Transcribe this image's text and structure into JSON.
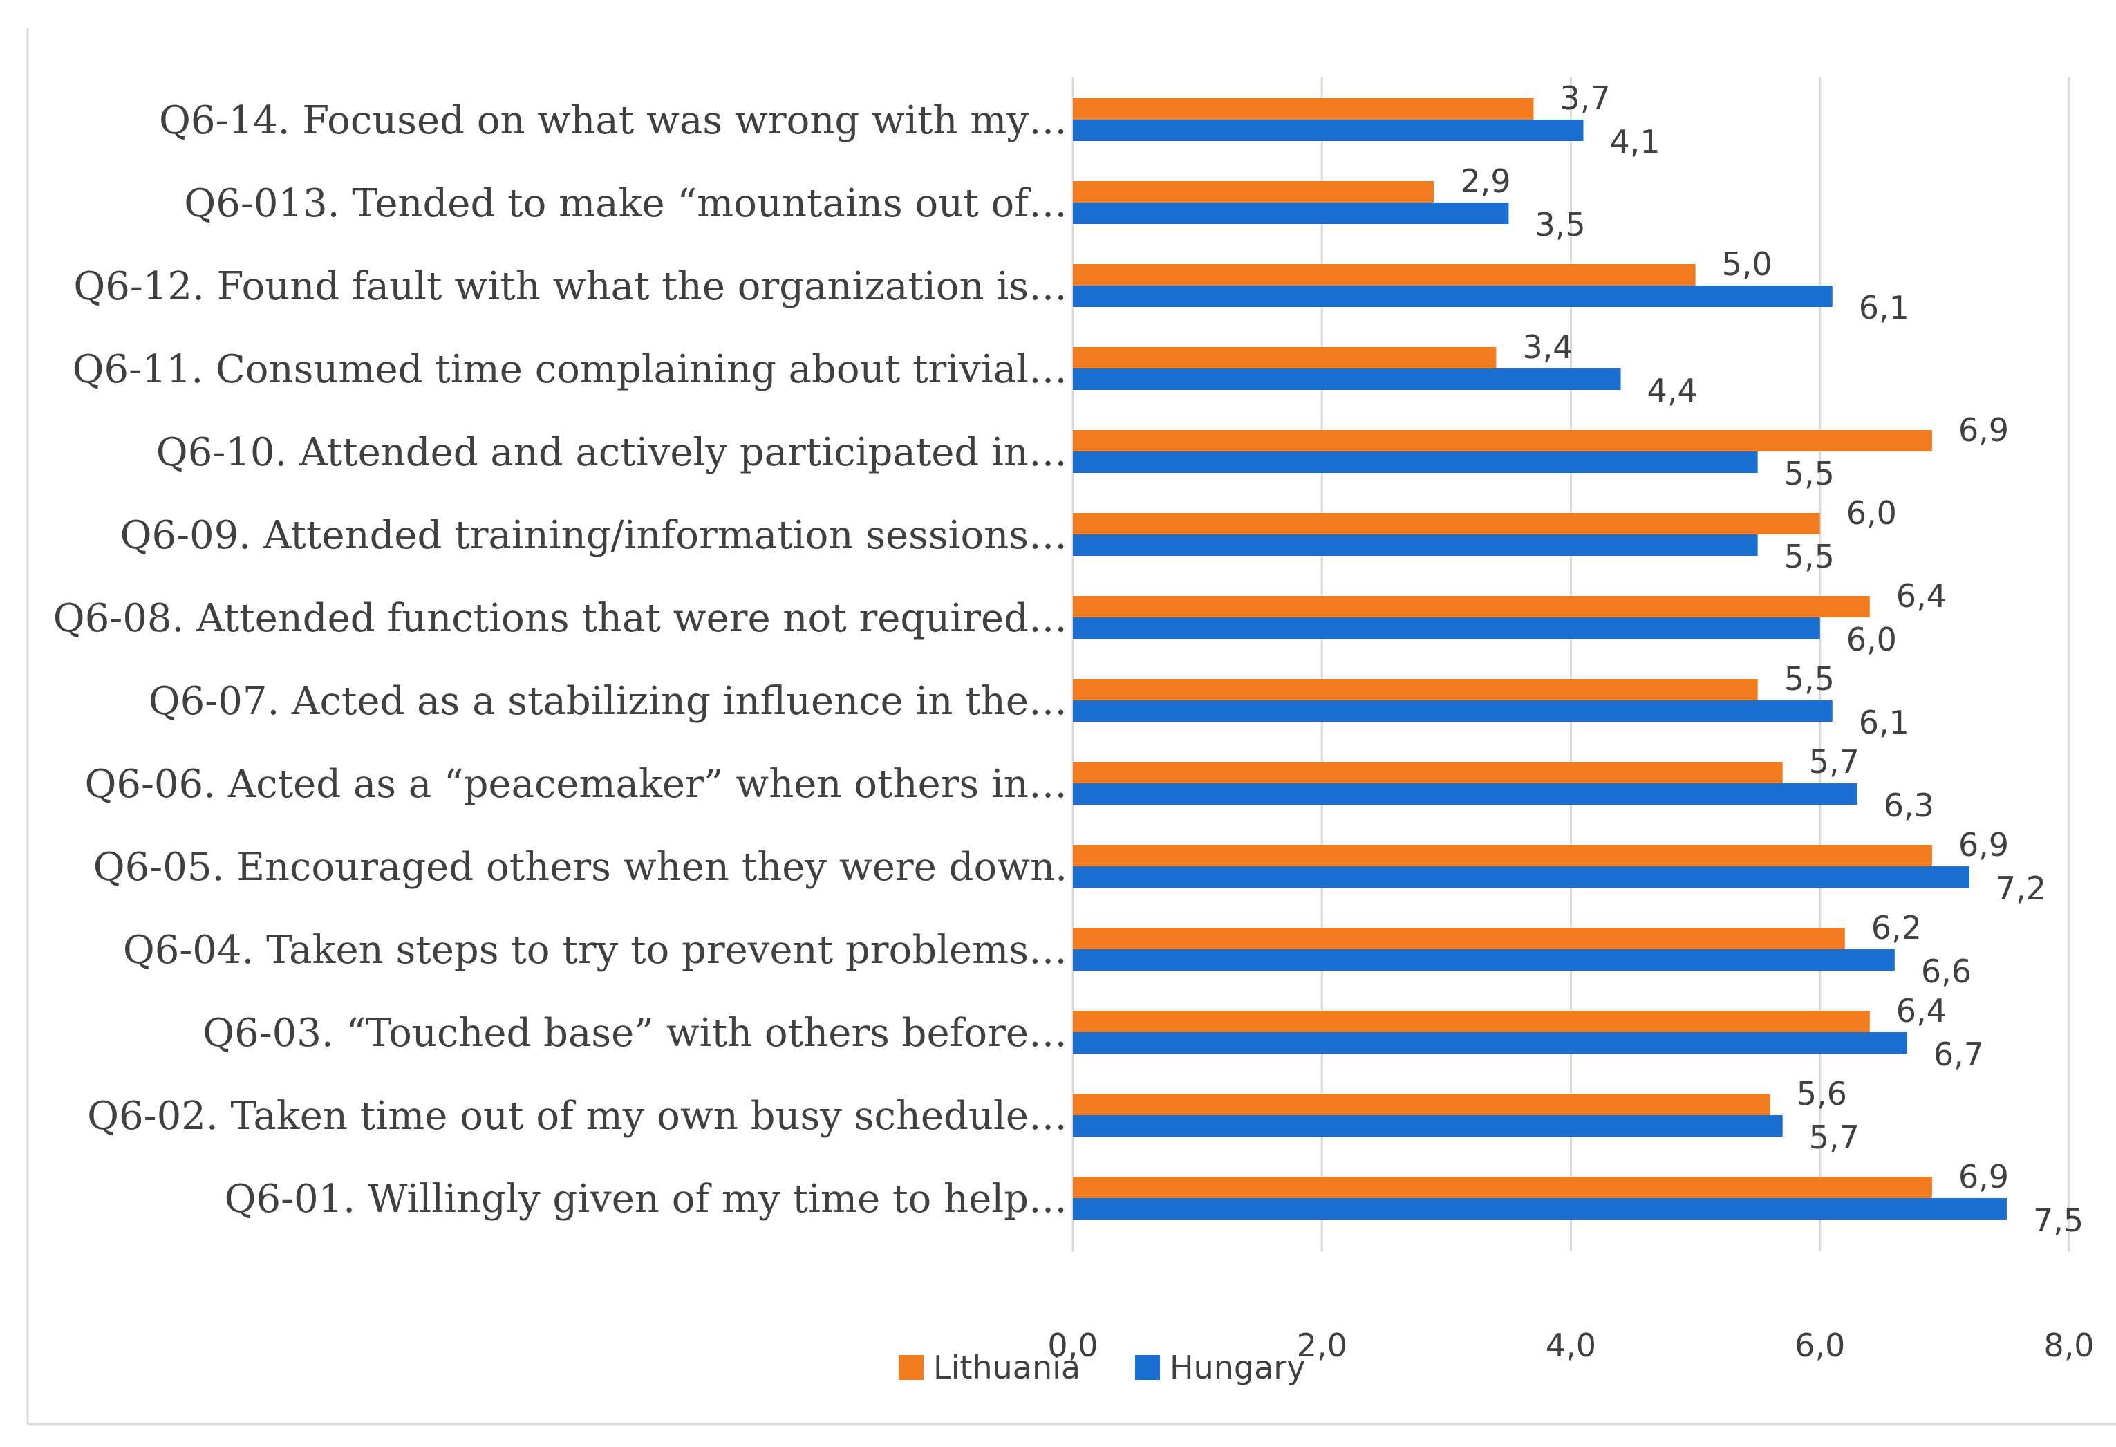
{
  "chart_data": {
    "type": "bar",
    "orientation": "horizontal",
    "title": "",
    "xlabel": "",
    "ylabel": "",
    "xlim": [
      0,
      8
    ],
    "x_ticks": [
      "0,0",
      "2,0",
      "4,0",
      "6,0",
      "8,0"
    ],
    "x_tick_values": [
      0,
      2,
      4,
      6,
      8
    ],
    "grid": true,
    "legend_position": "bottom",
    "categories": [
      "Q6-14. Focused on what was wrong with my…",
      "Q6-013. Tended to make “mountains out of…",
      "Q6-12. Found fault with what the organization is…",
      "Q6-11. Consumed time complaining about trivial…",
      "Q6-10. Attended and actively participated in…",
      "Q6-09. Attended training/information sessions…",
      "Q6-08. Attended functions that were not required…",
      "Q6-07. Acted as a stabilizing influence in the…",
      "Q6-06. Acted as a “peacemaker” when others in…",
      "Q6-05. Encouraged others when they were down.",
      "Q6-04. Taken steps to try to prevent problems…",
      "Q6-03. “Touched base” with others before…",
      "Q6-02. Taken time out of my own busy schedule…",
      "Q6-01. Willingly given of my time to help…"
    ],
    "series": [
      {
        "name": "Lithuania",
        "color": "#f47c20",
        "values": [
          3.7,
          2.9,
          5.0,
          3.4,
          6.9,
          6.0,
          6.4,
          5.5,
          5.7,
          6.9,
          6.2,
          6.4,
          5.6,
          6.9
        ],
        "labels": [
          "3,7",
          "2,9",
          "5,0",
          "3,4",
          "6,9",
          "6,0",
          "6,4",
          "5,5",
          "5,7",
          "6,9",
          "6,2",
          "6,4",
          "5,6",
          "6,9"
        ]
      },
      {
        "name": "Hungary",
        "color": "#1a6fd1",
        "values": [
          4.1,
          3.5,
          6.1,
          4.4,
          5.5,
          5.5,
          6.0,
          6.1,
          6.3,
          7.2,
          6.6,
          6.7,
          5.7,
          7.5
        ],
        "labels": [
          "4,1",
          "3,5",
          "6,1",
          "4,4",
          "5,5",
          "5,5",
          "6,0",
          "6,1",
          "6,3",
          "7,2",
          "6,6",
          "6,7",
          "5,7",
          "7,5"
        ]
      }
    ]
  }
}
